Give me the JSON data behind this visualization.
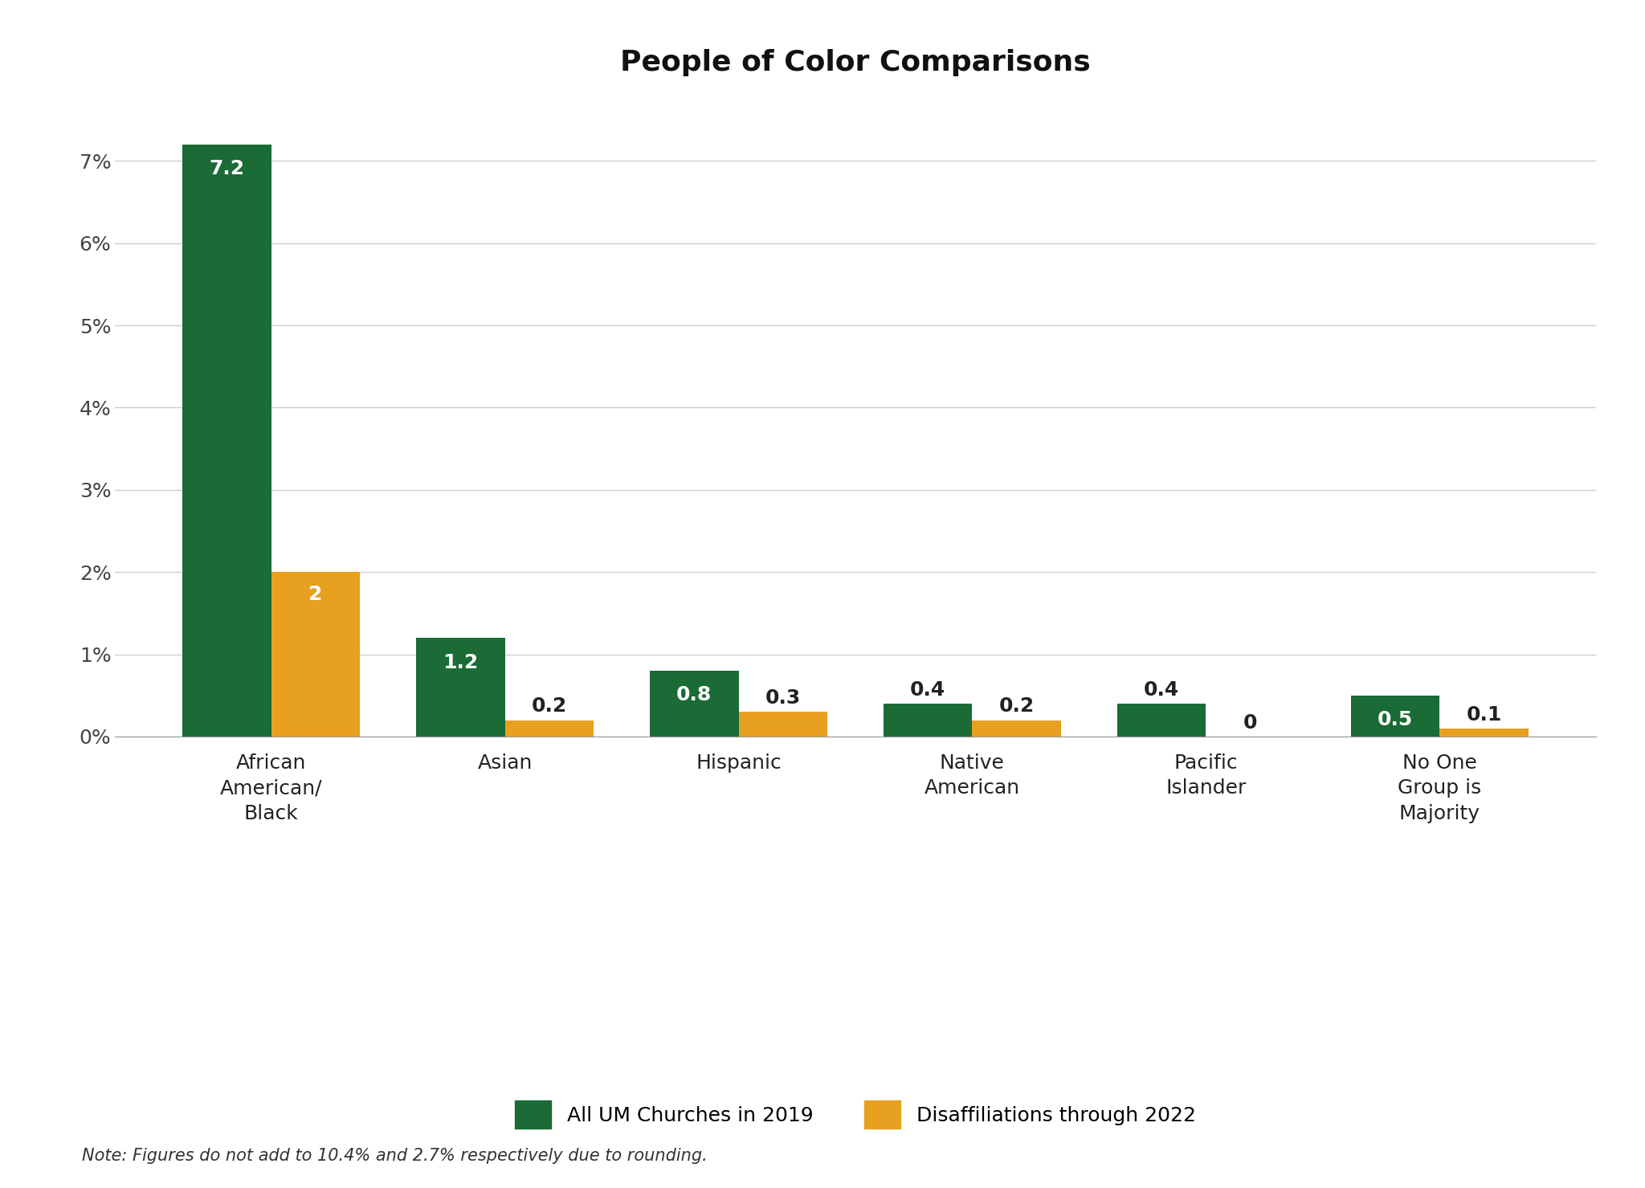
{
  "title": "People of Color Comparisons",
  "categories": [
    "African\nAmerican/\nBlack",
    "Asian",
    "Hispanic",
    "Native\nAmerican",
    "Pacific\nIslander",
    "No One\nGroup is\nMajority"
  ],
  "green_values": [
    7.2,
    1.2,
    0.8,
    0.4,
    0.4,
    0.5
  ],
  "orange_values": [
    2.0,
    0.2,
    0.3,
    0.2,
    0.0,
    0.1
  ],
  "green_color": "#1a6b35",
  "orange_color": "#e8a020",
  "bar_width": 0.38,
  "ylim": [
    0,
    7.8
  ],
  "yticks": [
    0,
    1,
    2,
    3,
    4,
    5,
    6,
    7
  ],
  "ytick_labels": [
    "0%",
    "1%",
    "2%",
    "3%",
    "4%",
    "5%",
    "6%",
    "7%"
  ],
  "legend_green_label": "All UM Churches in 2019",
  "legend_orange_label": "Disaffiliations through 2022",
  "note": "Note: Figures do not add to 10.4% and 2.7% respectively due to rounding.",
  "background_color": "#ffffff",
  "title_fontsize": 26,
  "tick_fontsize": 18,
  "legend_fontsize": 18,
  "note_fontsize": 15,
  "bar_label_fontsize": 18
}
